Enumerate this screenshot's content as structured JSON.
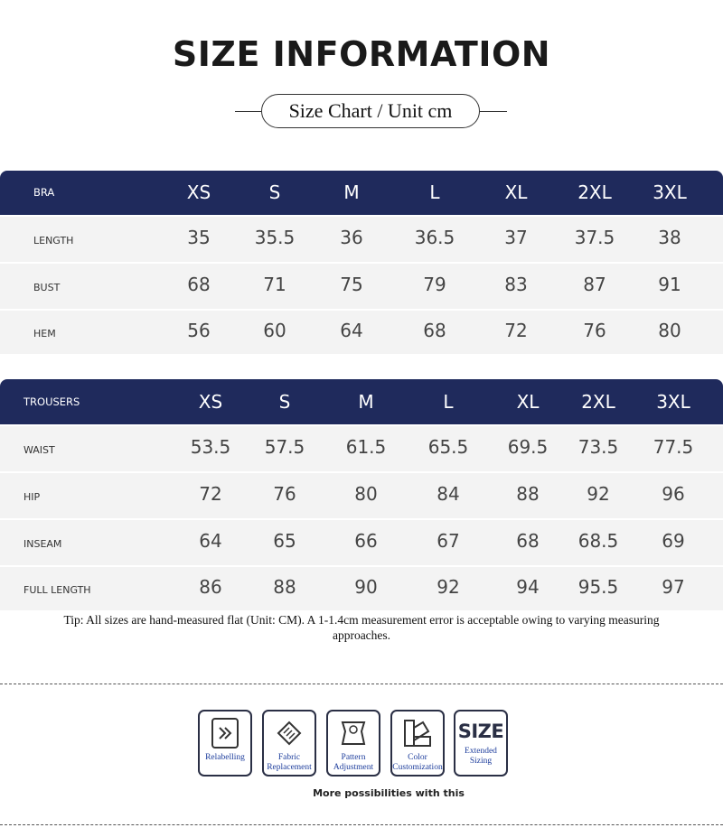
{
  "header": {
    "title": "SIZE INFORMATION",
    "subtitle": "Size Chart / Unit cm"
  },
  "tables": [
    {
      "header": [
        "BRA",
        "XS",
        "S",
        "M",
        "L",
        "XL",
        "2XL",
        "3XL"
      ],
      "rows": [
        [
          "LENGTH",
          35,
          35.5,
          36,
          36.5,
          37,
          37.5,
          38
        ],
        [
          "BUST",
          68,
          71,
          75,
          79,
          83,
          87,
          91
        ],
        [
          "HEM",
          56,
          60,
          64,
          68,
          72,
          76,
          80
        ]
      ]
    },
    {
      "header": [
        "TROUSERS",
        "XS",
        "S",
        "M",
        "L",
        "XL",
        "2XL",
        "3XL"
      ],
      "rows": [
        [
          "WAIST",
          53.5,
          57.5,
          61.5,
          65.5,
          69.5,
          73.5,
          77.5
        ],
        [
          "HIP",
          72,
          76,
          80,
          84,
          88,
          92,
          96
        ],
        [
          "INSEAM",
          64,
          65,
          66,
          67,
          68,
          68.5,
          69
        ],
        [
          "FULL LENGTH",
          86,
          88,
          90,
          92,
          94,
          95.5,
          97
        ]
      ]
    }
  ],
  "tip": "Tip: All sizes are hand-measured flat (Unit: CM). A 1-1.4cm measurement error is acceptable owing to varying measuring approaches.",
  "services": {
    "items": [
      "Relabelling",
      "Fabric Replacement",
      "Pattern Adjustment",
      "Color Customization",
      "Extended Sizing"
    ],
    "size_icon_text": "SIZE",
    "caption": "More possibilities with this"
  }
}
